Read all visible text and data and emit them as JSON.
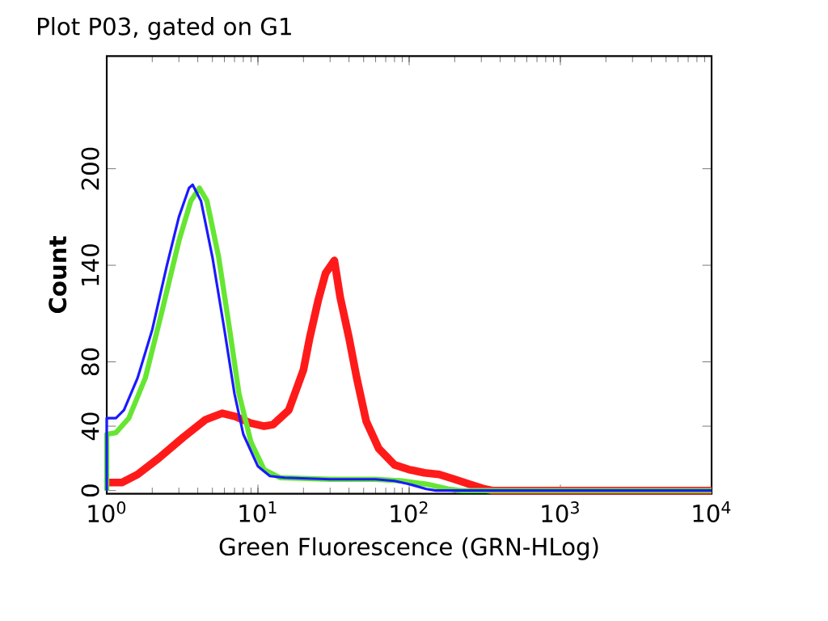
{
  "chart_data": {
    "type": "line",
    "title": "Plot P03, gated on G1",
    "xlabel": "Green Fluorescence (GRN-HLog)",
    "ylabel": "Count",
    "log": "x",
    "xlim": [
      1,
      10000
    ],
    "ylim": [
      -2,
      270
    ],
    "xticks": [
      {
        "value": 1,
        "label": "10$^{0}$"
      },
      {
        "value": 10,
        "label": "10$^{1}$"
      },
      {
        "value": 100,
        "label": "10$^{2}$"
      },
      {
        "value": 1000,
        "label": "10$^{3}$"
      },
      {
        "value": 10000,
        "label": "10$^{4}$"
      }
    ],
    "yticks": [
      0,
      40,
      80,
      140,
      200
    ],
    "series": [
      {
        "color": "#ff1a1a",
        "x": [
          1,
          1.26,
          1.6,
          2.2,
          3.2,
          4.5,
          5.8,
          7.1,
          8.9,
          11,
          12.6,
          16,
          20,
          22,
          25,
          28,
          32,
          35,
          40,
          45,
          52,
          63,
          80,
          100,
          126,
          158,
          200,
          250,
          316,
          355,
          10000
        ],
        "values": [
          5,
          5,
          10,
          20,
          33,
          44,
          48,
          46,
          42,
          40,
          41,
          50,
          75,
          95,
          118,
          135,
          143,
          120,
          95,
          70,
          43,
          26,
          16,
          13,
          11,
          10,
          7,
          4,
          1,
          0,
          0
        ]
      },
      {
        "color": "#66e633",
        "x": [
          1,
          1,
          1.15,
          1.4,
          1.8,
          2.3,
          3.0,
          3.6,
          4.1,
          4.6,
          5.5,
          6.5,
          7.5,
          9,
          11,
          14,
          30,
          60,
          90,
          130,
          180,
          220,
          10000
        ],
        "values": [
          0,
          35,
          36,
          45,
          70,
          110,
          155,
          180,
          188,
          180,
          145,
          100,
          60,
          30,
          13,
          8,
          7,
          7,
          6,
          4,
          1,
          0,
          0
        ]
      },
      {
        "color": "#1a1aff",
        "x": [
          1,
          1,
          1.15,
          1.3,
          1.6,
          2.0,
          2.5,
          3.0,
          3.5,
          3.7,
          4.2,
          5,
          6,
          7,
          8,
          10,
          12,
          15,
          30,
          60,
          80,
          100,
          130,
          150,
          10000
        ],
        "values": [
          0,
          45,
          45,
          50,
          70,
          100,
          140,
          170,
          188,
          190,
          180,
          145,
          100,
          60,
          35,
          15,
          9,
          8,
          7,
          7,
          6,
          4,
          1,
          0,
          0
        ]
      }
    ]
  }
}
